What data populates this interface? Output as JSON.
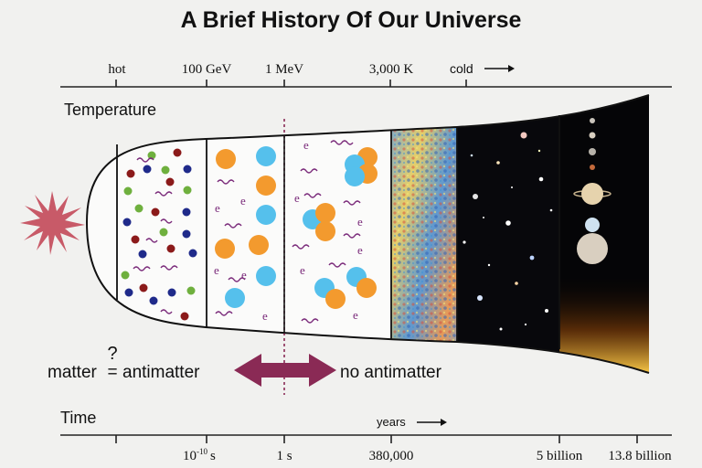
{
  "title": "A Brief History Of Our Universe",
  "temperature_axis": {
    "label": "Temperature",
    "ticks": [
      "hot",
      "100 GeV",
      "1 MeV",
      "3,000 K"
    ],
    "cold_label": "cold"
  },
  "time_axis": {
    "label": "Time",
    "units_label": "years",
    "ticks": [
      "10",
      "-10",
      "s",
      "1 s",
      "380,000",
      "5 billion",
      "13.8 billion"
    ]
  },
  "matter": {
    "question_mark": "?",
    "left_label": "matter",
    "equals_sign": "=",
    "right_label": "antimatter",
    "no_antimatter_label": "no antimatter"
  },
  "particle_labels": {
    "electron": "e"
  },
  "colors": {
    "accent": "#8a2a55",
    "big_bang": "#c85a68",
    "quark_red": "#8b1a1a",
    "quark_blue": "#1f2a8a",
    "quark_green": "#6fb03e",
    "proton_orange": "#f39a2e",
    "neutron_blue": "#55c0ec",
    "electron_purple": "#7a2a7a"
  },
  "icons": [
    "big-bang-burst-icon",
    "double-arrow-icon",
    "right-arrow-icon"
  ]
}
